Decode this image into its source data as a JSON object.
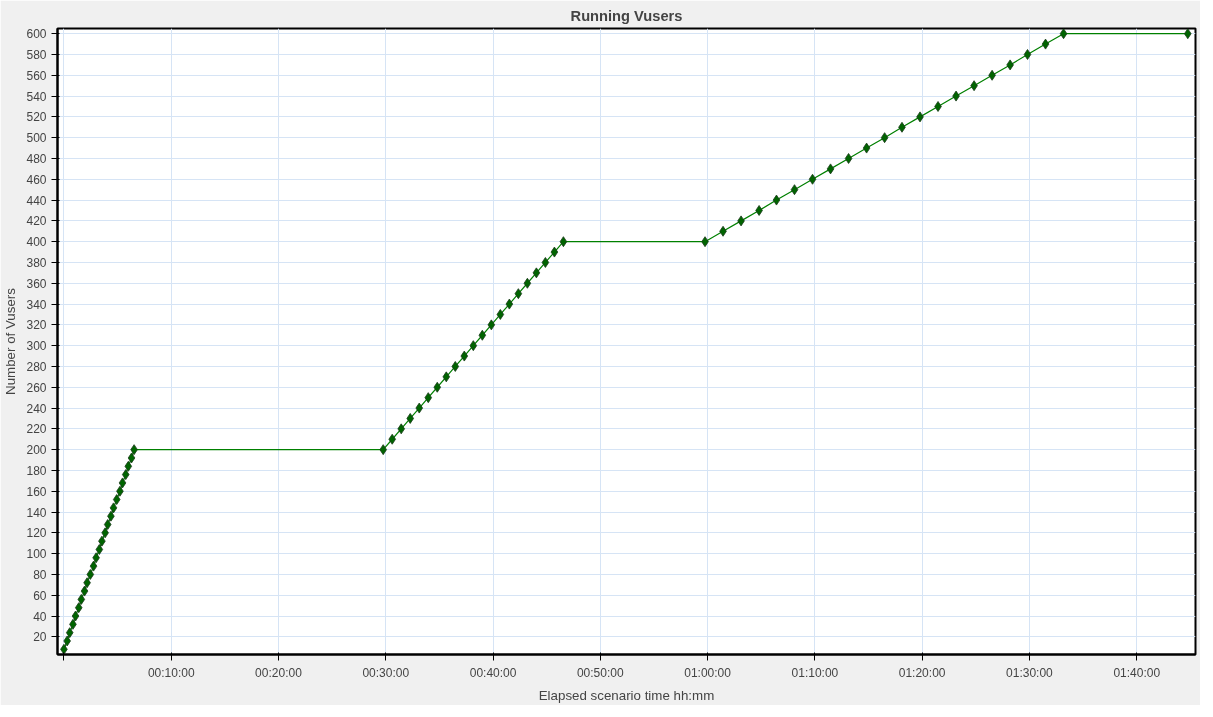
{
  "chart_data": {
    "type": "line",
    "title": "Running Vusers",
    "xlabel": "Elapsed scenario time hh:mm",
    "ylabel": "Number of Vusers",
    "marker": "diamond",
    "line_style": "solid",
    "grid": true,
    "xlim": [
      -0.01,
      1.758
    ],
    "ylim": [
      3,
      605
    ],
    "xticks": [
      {
        "value": 0,
        "label": null
      },
      {
        "value": 0.1667,
        "label": "00:10:00"
      },
      {
        "value": 0.3333,
        "label": "00:20:00"
      },
      {
        "value": 0.5,
        "label": "00:30:00"
      },
      {
        "value": 0.6667,
        "label": "00:40:00"
      },
      {
        "value": 0.8333,
        "label": "00:50:00"
      },
      {
        "value": 1.0,
        "label": "01:00:00"
      },
      {
        "value": 1.1667,
        "label": "01:10:00"
      },
      {
        "value": 1.3333,
        "label": "01:20:00"
      },
      {
        "value": 1.5,
        "label": "01:30:00"
      },
      {
        "value": 1.6667,
        "label": "01:40:00"
      }
    ],
    "yticks": [
      20,
      40,
      60,
      80,
      100,
      120,
      140,
      160,
      180,
      200,
      220,
      240,
      260,
      280,
      300,
      320,
      340,
      360,
      380,
      400,
      420,
      440,
      460,
      480,
      500,
      520,
      540,
      560,
      580,
      600
    ],
    "x": [
      0.0,
      0.005,
      0.009,
      0.014,
      0.018,
      0.023,
      0.027,
      0.032,
      0.036,
      0.041,
      0.046,
      0.05,
      0.055,
      0.059,
      0.064,
      0.068,
      0.073,
      0.077,
      0.082,
      0.087,
      0.091,
      0.096,
      0.1,
      0.105,
      0.109,
      0.496,
      0.51,
      0.524,
      0.538,
      0.552,
      0.566,
      0.58,
      0.594,
      0.608,
      0.622,
      0.636,
      0.65,
      0.664,
      0.678,
      0.692,
      0.706,
      0.72,
      0.734,
      0.748,
      0.762,
      0.776,
      0.996,
      1.024,
      1.052,
      1.08,
      1.107,
      1.135,
      1.163,
      1.191,
      1.219,
      1.247,
      1.275,
      1.302,
      1.33,
      1.358,
      1.386,
      1.414,
      1.442,
      1.47,
      1.497,
      1.525,
      1.553,
      1.746
    ],
    "series": [
      {
        "color": "#006400",
        "values": [
          8,
          16,
          24,
          32,
          40,
          48,
          56,
          64,
          72,
          80,
          88,
          96,
          104,
          112,
          120,
          128,
          136,
          144,
          152,
          160,
          168,
          176,
          184,
          192,
          200,
          200,
          210,
          220,
          230,
          240,
          250,
          260,
          270,
          280,
          290,
          300,
          310,
          320,
          330,
          340,
          350,
          360,
          370,
          380,
          390,
          400,
          400,
          410,
          420,
          430,
          440,
          450,
          460,
          470,
          480,
          490,
          500,
          510,
          520,
          530,
          540,
          550,
          560,
          570,
          580,
          590,
          600,
          600
        ]
      }
    ]
  }
}
